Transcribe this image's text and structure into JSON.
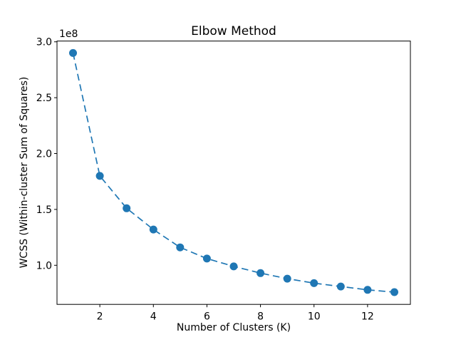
{
  "chart_data": {
    "type": "line",
    "title": "Elbow Method",
    "xlabel": "Number of Clusters (K)",
    "ylabel": "WCSS (Within-cluster Sum of Squares)",
    "y_offset_label": "1e8",
    "x": [
      1,
      2,
      3,
      4,
      5,
      6,
      7,
      8,
      9,
      10,
      11,
      12,
      13
    ],
    "values": [
      290000000,
      180000000,
      151000000,
      132000000,
      116000000,
      106000000,
      99000000,
      93000000,
      88000000,
      84000000,
      81000000,
      78000000,
      76000000
    ],
    "xlim": [
      0.4,
      13.6
    ],
    "ylim": [
      65000000,
      300700000
    ],
    "xticks": {
      "values": [
        2,
        4,
        6,
        8,
        10,
        12
      ],
      "labels": [
        "2",
        "4",
        "6",
        "8",
        "10",
        "12"
      ]
    },
    "yticks": {
      "values": [
        100000000,
        150000000,
        200000000,
        250000000,
        300000000
      ],
      "labels": [
        "1.0",
        "1.5",
        "2.0",
        "2.5",
        "3.0"
      ]
    },
    "grid": false,
    "line_style": "dashed",
    "marker": "o"
  },
  "colors": {
    "background": "#ffffff",
    "axes": "#000000",
    "text": "#000000",
    "series": "#1f77b4"
  }
}
